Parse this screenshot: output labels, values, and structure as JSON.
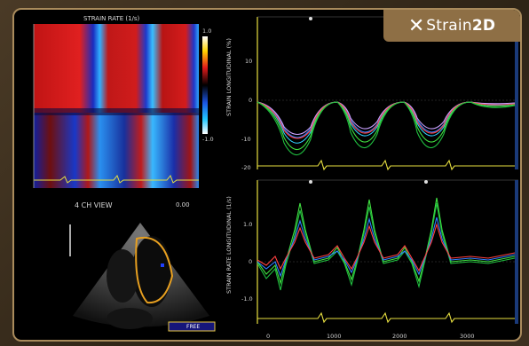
{
  "logo": {
    "mark": "✕",
    "brand": "Strain",
    "suffix": "2D"
  },
  "colormap_panel": {
    "title": "STRAIN RATE (1/s)",
    "colorbar_top": "1.0",
    "colorbar_bottom": "-1.0"
  },
  "echo_panel": {
    "title": "4 CH VIEW",
    "scale": "0.00",
    "badge": "FREE"
  },
  "strain_plot": {
    "ylabel": "STRAIN LONGITUDINAL (%)",
    "ticks": [
      "10",
      "0",
      "-10",
      "-20"
    ]
  },
  "strain_rate_plot": {
    "ylabel": "STRAIN RATE LONGITUDINAL (1/s)",
    "ticks": [
      "1.0",
      "0",
      "-1.0"
    ],
    "xticks": [
      "0",
      "1000",
      "2000",
      "3000"
    ]
  }
}
